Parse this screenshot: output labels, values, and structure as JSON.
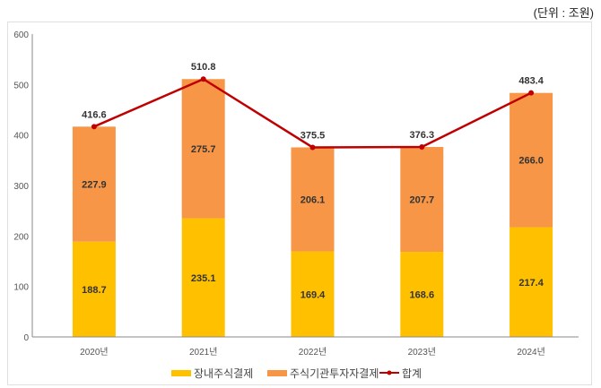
{
  "unit_label": "(단위 : 조원)",
  "chart_data": {
    "type": "bar",
    "stacked": true,
    "categories": [
      "2020년",
      "2021년",
      "2022년",
      "2023년",
      "2024년"
    ],
    "series": [
      {
        "name": "장내주식결제",
        "type": "bar",
        "color": "#FFC000",
        "values": [
          188.7,
          235.1,
          169.4,
          168.6,
          217.4
        ]
      },
      {
        "name": "주식기관투자자결제",
        "type": "bar",
        "color": "#F79646",
        "values": [
          227.9,
          275.7,
          206.1,
          207.7,
          266.0
        ]
      },
      {
        "name": "합계",
        "type": "line",
        "color": "#C00000",
        "values": [
          416.6,
          510.8,
          375.5,
          376.3,
          483.4
        ]
      }
    ],
    "ylim": [
      0,
      600
    ],
    "yticks": [
      0,
      100,
      200,
      300,
      400,
      500,
      600
    ],
    "grid": false,
    "legend": "bottom",
    "title": "",
    "xlabel": "",
    "ylabel": ""
  }
}
